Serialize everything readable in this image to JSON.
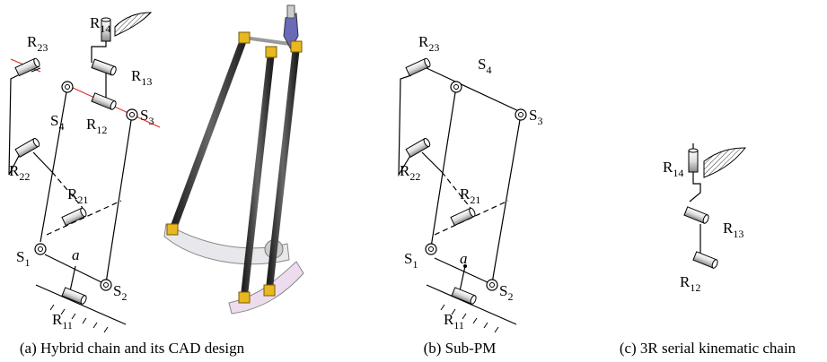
{
  "panel_a": {
    "labels": [
      {
        "text": "R",
        "sub": "14"
      },
      {
        "text": "R",
        "sub": "23"
      },
      {
        "text": "R",
        "sub": "13"
      },
      {
        "text": "S",
        "sub": "4"
      },
      {
        "text": "R",
        "sub": "12"
      },
      {
        "text": "S",
        "sub": "3"
      },
      {
        "text": "R",
        "sub": "22"
      },
      {
        "text": "R",
        "sub": "21"
      },
      {
        "text": "S",
        "sub": "1"
      },
      {
        "text": "a"
      },
      {
        "text": "S",
        "sub": "2"
      },
      {
        "text": "R",
        "sub": "11"
      }
    ],
    "caption": "(a) Hybrid chain and its CAD design"
  },
  "panel_b": {
    "labels": [
      {
        "text": "R",
        "sub": "23"
      },
      {
        "text": "S",
        "sub": "4"
      },
      {
        "text": "S",
        "sub": "3"
      },
      {
        "text": "R",
        "sub": "22"
      },
      {
        "text": "R",
        "sub": "21"
      },
      {
        "text": "S",
        "sub": "1"
      },
      {
        "text": "a"
      },
      {
        "text": "S",
        "sub": "2"
      },
      {
        "text": "R",
        "sub": "11"
      }
    ],
    "caption": "(b) Sub-PM"
  },
  "panel_c": {
    "labels": [
      {
        "text": "R",
        "sub": "14"
      },
      {
        "text": "R",
        "sub": "13"
      },
      {
        "text": "R",
        "sub": "12"
      }
    ],
    "caption": "(c) 3R serial kinematic chain"
  }
}
